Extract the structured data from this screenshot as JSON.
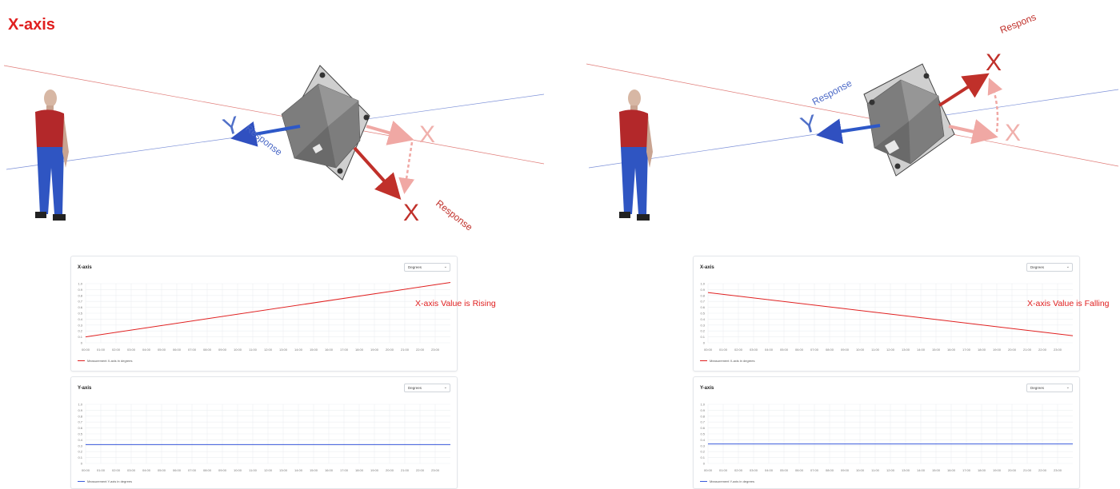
{
  "page_title": "X-axis",
  "icons": {
    "figure": "person-figure-icon",
    "sensor": "tilt-sensor-icon"
  },
  "colors": {
    "x_axis": "#c0302a",
    "y_axis": "#3050c0",
    "x_faded": "#f0a8a4",
    "title": "#e02020"
  },
  "scenes": [
    {
      "labels": {
        "y_axis": "Y",
        "x_axis_original": "X",
        "x_axis_response": "X",
        "y_response": "Response",
        "x_response": "Response"
      }
    },
    {
      "labels": {
        "y_axis": "Y",
        "x_axis_original": "X",
        "x_axis_response": "X",
        "y_response": "Response",
        "x_response": "Respons"
      }
    }
  ],
  "annotations": {
    "rising": "X-axis Value is Rising",
    "falling": "X-axis Value is Falling"
  },
  "chart_data": [
    {
      "type": "line",
      "title": "X-axis",
      "unit_selector": "Degrees",
      "categories": [
        "00:00",
        "01:00",
        "02:00",
        "03:00",
        "04:00",
        "05:00",
        "06:00",
        "07:00",
        "08:00",
        "09:00",
        "10:00",
        "11:00",
        "12:00",
        "13:00",
        "14:00",
        "15:00",
        "16:00",
        "17:00",
        "18:00",
        "19:00",
        "20:00",
        "21:00",
        "22:00",
        "23:00"
      ],
      "y_ticks": [
        "1.0",
        "0.9",
        "0.8",
        "0.7",
        "0.6",
        "0.5",
        "0.4",
        "0.3",
        "0.2",
        "0.1",
        "0"
      ],
      "ylim": [
        0,
        1.0
      ],
      "x_range": [
        0,
        24
      ],
      "series": [
        {
          "name": "Measurement X-axis in degrees",
          "color": "#e02020",
          "x": [
            0,
            24
          ],
          "values": [
            0.1,
            1.02
          ]
        }
      ],
      "grid": true,
      "legend": "bottom-left"
    },
    {
      "type": "line",
      "title": "Y-axis",
      "unit_selector": "Degrees",
      "categories": [
        "00:00",
        "01:00",
        "02:00",
        "03:00",
        "04:00",
        "05:00",
        "06:00",
        "07:00",
        "08:00",
        "09:00",
        "10:00",
        "11:00",
        "12:00",
        "13:00",
        "14:00",
        "15:00",
        "16:00",
        "17:00",
        "18:00",
        "19:00",
        "20:00",
        "21:00",
        "22:00",
        "23:00"
      ],
      "y_ticks": [
        "1.0",
        "0.9",
        "0.8",
        "0.7",
        "0.6",
        "0.5",
        "0.4",
        "0.3",
        "0.2",
        "0.1",
        "0"
      ],
      "ylim": [
        0,
        1.0
      ],
      "x_range": [
        0,
        24
      ],
      "series": [
        {
          "name": "Measurement Y-axis in degrees",
          "color": "#3b5bdb",
          "x": [
            0,
            24
          ],
          "values": [
            0.32,
            0.32
          ]
        }
      ],
      "grid": true,
      "legend": "bottom-left"
    },
    {
      "type": "line",
      "title": "X-axis",
      "unit_selector": "Degrees",
      "categories": [
        "00:00",
        "01:00",
        "02:00",
        "03:00",
        "04:00",
        "05:00",
        "06:00",
        "07:00",
        "08:00",
        "09:00",
        "10:00",
        "11:00",
        "12:00",
        "13:00",
        "14:00",
        "15:00",
        "16:00",
        "17:00",
        "18:00",
        "19:00",
        "20:00",
        "21:00",
        "22:00",
        "23:00"
      ],
      "y_ticks": [
        "1.0",
        "0.9",
        "0.8",
        "0.7",
        "0.6",
        "0.5",
        "0.4",
        "0.3",
        "0.2",
        "0.1",
        "0"
      ],
      "ylim": [
        0,
        1.0
      ],
      "x_range": [
        0,
        24
      ],
      "series": [
        {
          "name": "Measurement X-axis in degrees",
          "color": "#e02020",
          "x": [
            0,
            24
          ],
          "values": [
            0.85,
            0.12
          ]
        }
      ],
      "grid": true,
      "legend": "bottom-left"
    },
    {
      "type": "line",
      "title": "Y-axis",
      "unit_selector": "Degrees",
      "categories": [
        "00:00",
        "01:00",
        "02:00",
        "03:00",
        "04:00",
        "05:00",
        "06:00",
        "07:00",
        "08:00",
        "09:00",
        "10:00",
        "11:00",
        "12:00",
        "13:00",
        "14:00",
        "15:00",
        "16:00",
        "17:00",
        "18:00",
        "19:00",
        "20:00",
        "21:00",
        "22:00",
        "23:00"
      ],
      "y_ticks": [
        "1.0",
        "0.9",
        "0.8",
        "0.7",
        "0.6",
        "0.5",
        "0.4",
        "0.3",
        "0.2",
        "0.1",
        "0"
      ],
      "ylim": [
        0,
        1.0
      ],
      "x_range": [
        0,
        24
      ],
      "series": [
        {
          "name": "Measurement Y-axis in degrees",
          "color": "#3b5bdb",
          "x": [
            0,
            24
          ],
          "values": [
            0.33,
            0.33
          ]
        }
      ],
      "grid": true,
      "legend": "bottom-left"
    }
  ]
}
